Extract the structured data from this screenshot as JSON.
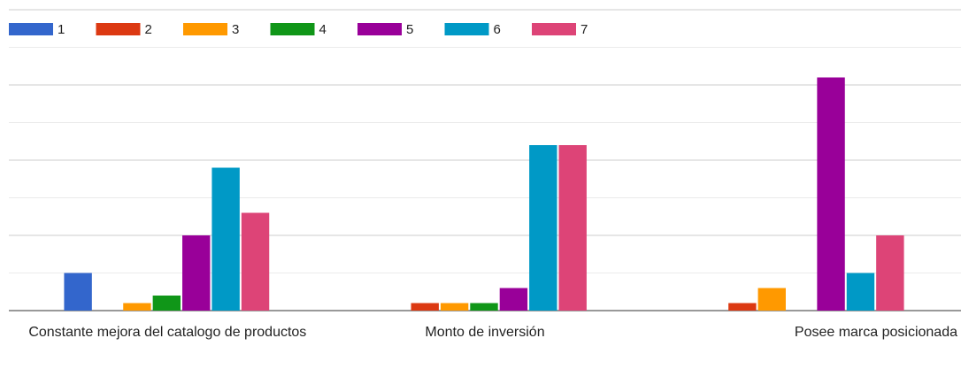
{
  "chart_data": {
    "type": "bar",
    "categories": [
      "Constante mejora del catalogo de productos",
      "Monto de inversión",
      "Posee marca posicionada"
    ],
    "series": [
      {
        "name": "1",
        "color": "#3366cc",
        "values": [
          5,
          0,
          0
        ]
      },
      {
        "name": "2",
        "color": "#dc3912",
        "values": [
          0,
          1,
          1
        ]
      },
      {
        "name": "3",
        "color": "#ff9900",
        "values": [
          1,
          1,
          3
        ]
      },
      {
        "name": "4",
        "color": "#109618",
        "values": [
          2,
          1,
          0
        ]
      },
      {
        "name": "5",
        "color": "#990099",
        "values": [
          10,
          3,
          31
        ]
      },
      {
        "name": "6",
        "color": "#0099c6",
        "values": [
          19,
          22,
          5
        ]
      },
      {
        "name": "7",
        "color": "#dd4477",
        "values": [
          13,
          22,
          10
        ]
      }
    ],
    "ylim": [
      0,
      40
    ],
    "yticks": [
      0,
      5,
      10,
      15,
      20,
      25,
      30,
      35,
      40
    ],
    "grid": true,
    "legend": "top"
  }
}
